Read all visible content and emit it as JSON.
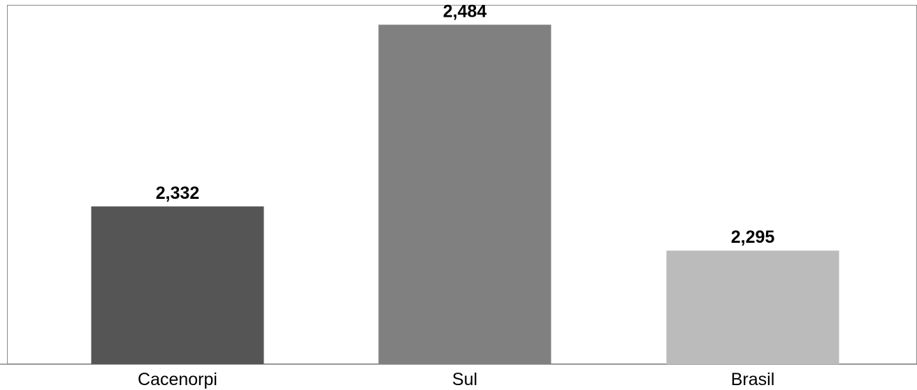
{
  "chart_data": {
    "type": "bar",
    "categories": [
      "Cacenorpi",
      "Sul",
      "Brasil"
    ],
    "values": [
      2.332,
      2.484,
      2.295
    ],
    "value_labels": [
      "2,332",
      "2,484",
      "2,295"
    ],
    "bar_colors": [
      "#555555",
      "#808080",
      "#bbbbbb"
    ],
    "title": "",
    "xlabel": "",
    "ylabel": "",
    "ylim": [
      2.2,
      2.5
    ],
    "grid": false,
    "legend": "none"
  }
}
